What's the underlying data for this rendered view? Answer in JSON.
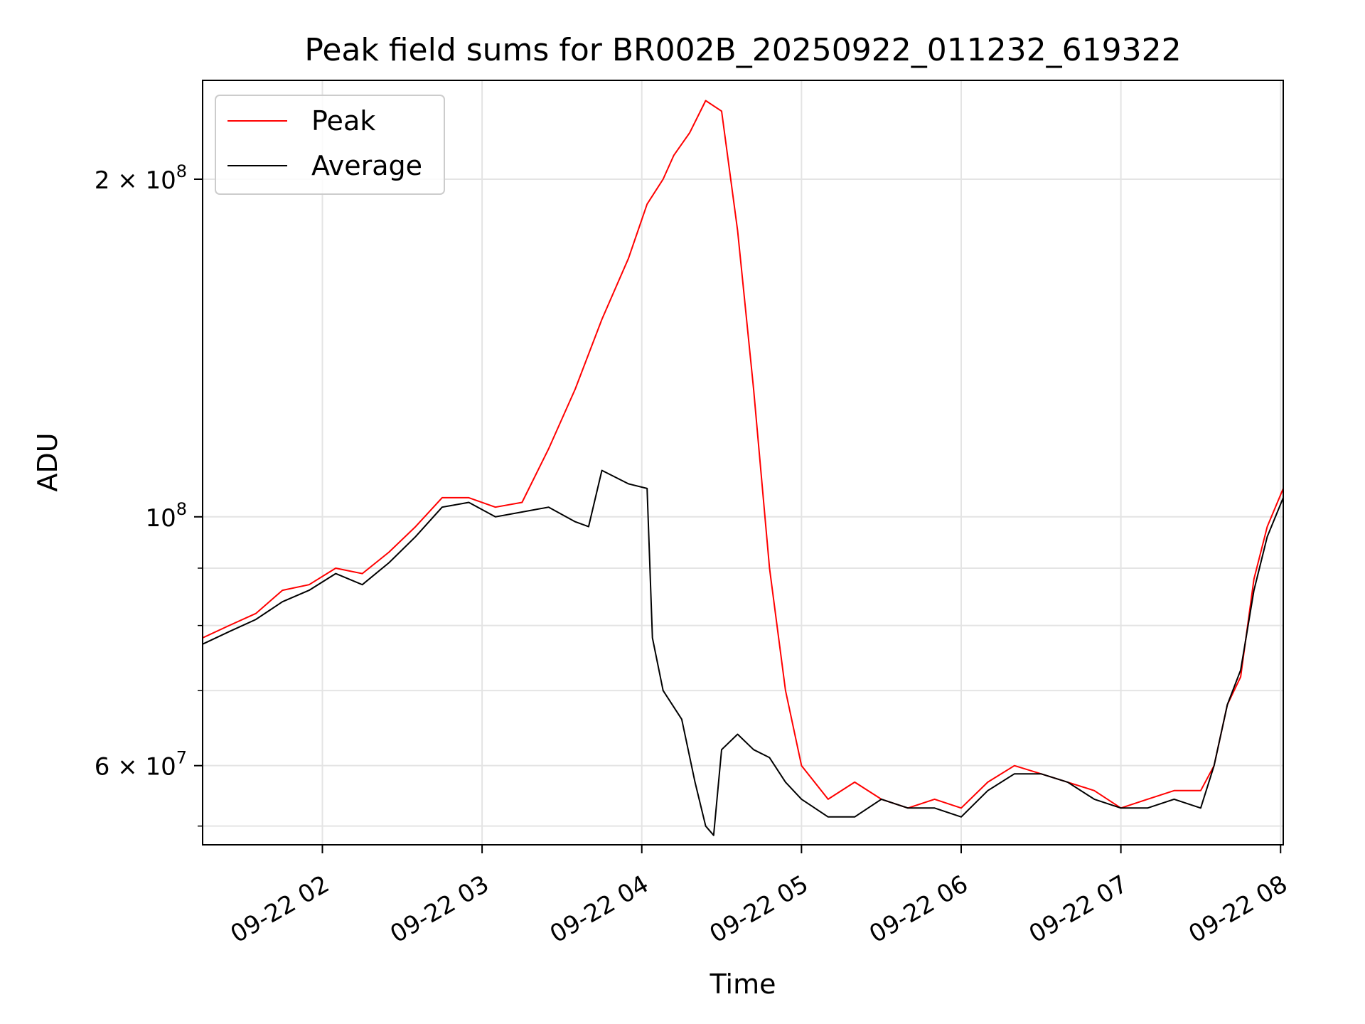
{
  "chart_data": {
    "type": "line",
    "title": "Peak field sums for BR002B_20250922_011232_619322",
    "xlabel": "Time",
    "ylabel": "ADU",
    "yscale": "log",
    "xlim": [
      "2025-09-22 01:15",
      "2025-09-22 08:01"
    ],
    "ylim": [
      51000000,
      245000000
    ],
    "grid": true,
    "legend_position": "top-left",
    "x_ticks": [
      {
        "value": "2025-09-22 02:00",
        "label": "09-22 02"
      },
      {
        "value": "2025-09-22 03:00",
        "label": "09-22 03"
      },
      {
        "value": "2025-09-22 04:00",
        "label": "09-22 04"
      },
      {
        "value": "2025-09-22 05:00",
        "label": "09-22 05"
      },
      {
        "value": "2025-09-22 06:00",
        "label": "09-22 06"
      },
      {
        "value": "2025-09-22 07:00",
        "label": "09-22 07"
      },
      {
        "value": "2025-09-22 08:00",
        "label": "09-22 08"
      }
    ],
    "y_ticks": [
      {
        "value": 60000000,
        "base": "6",
        "exp": "7"
      },
      {
        "value": 100000000,
        "base": "",
        "exp": "8"
      },
      {
        "value": 200000000,
        "base": "2",
        "exp": "8"
      }
    ],
    "y_minor_ticks": [
      53000000,
      70000000,
      80000000,
      90000000
    ],
    "series": [
      {
        "name": "Peak",
        "color": "#ff0000",
        "x": [
          "2025-09-22 01:15",
          "2025-09-22 01:25",
          "2025-09-22 01:35",
          "2025-09-22 01:45",
          "2025-09-22 01:55",
          "2025-09-22 02:05",
          "2025-09-22 02:15",
          "2025-09-22 02:25",
          "2025-09-22 02:35",
          "2025-09-22 02:45",
          "2025-09-22 02:55",
          "2025-09-22 03:05",
          "2025-09-22 03:15",
          "2025-09-22 03:25",
          "2025-09-22 03:35",
          "2025-09-22 03:45",
          "2025-09-22 03:55",
          "2025-09-22 04:02",
          "2025-09-22 04:08",
          "2025-09-22 04:12",
          "2025-09-22 04:18",
          "2025-09-22 04:24",
          "2025-09-22 04:30",
          "2025-09-22 04:36",
          "2025-09-22 04:42",
          "2025-09-22 04:48",
          "2025-09-22 04:54",
          "2025-09-22 05:00",
          "2025-09-22 05:10",
          "2025-09-22 05:20",
          "2025-09-22 05:30",
          "2025-09-22 05:40",
          "2025-09-22 05:50",
          "2025-09-22 06:00",
          "2025-09-22 06:10",
          "2025-09-22 06:20",
          "2025-09-22 06:30",
          "2025-09-22 06:40",
          "2025-09-22 06:50",
          "2025-09-22 07:00",
          "2025-09-22 07:10",
          "2025-09-22 07:20",
          "2025-09-22 07:30",
          "2025-09-22 07:35",
          "2025-09-22 07:40",
          "2025-09-22 07:45",
          "2025-09-22 07:50",
          "2025-09-22 07:55",
          "2025-09-22 08:01"
        ],
        "y": [
          78000000,
          80000000,
          82000000,
          86000000,
          87000000,
          90000000,
          89000000,
          93000000,
          98000000,
          104000000,
          104000000,
          102000000,
          103000000,
          115000000,
          130000000,
          150000000,
          170000000,
          190000000,
          200000000,
          210000000,
          220000000,
          235000000,
          230000000,
          180000000,
          130000000,
          90000000,
          70000000,
          60000000,
          56000000,
          58000000,
          56000000,
          55000000,
          56000000,
          55000000,
          58000000,
          60000000,
          59000000,
          58000000,
          57000000,
          55000000,
          56000000,
          57000000,
          57000000,
          60000000,
          68000000,
          72000000,
          88000000,
          98000000,
          106000000
        ]
      },
      {
        "name": "Average",
        "color": "#000000",
        "x": [
          "2025-09-22 01:15",
          "2025-09-22 01:25",
          "2025-09-22 01:35",
          "2025-09-22 01:45",
          "2025-09-22 01:55",
          "2025-09-22 02:05",
          "2025-09-22 02:15",
          "2025-09-22 02:25",
          "2025-09-22 02:35",
          "2025-09-22 02:45",
          "2025-09-22 02:55",
          "2025-09-22 03:05",
          "2025-09-22 03:15",
          "2025-09-22 03:25",
          "2025-09-22 03:35",
          "2025-09-22 03:40",
          "2025-09-22 03:45",
          "2025-09-22 03:55",
          "2025-09-22 04:02",
          "2025-09-22 04:04",
          "2025-09-22 04:08",
          "2025-09-22 04:15",
          "2025-09-22 04:20",
          "2025-09-22 04:24",
          "2025-09-22 04:27",
          "2025-09-22 04:30",
          "2025-09-22 04:36",
          "2025-09-22 04:42",
          "2025-09-22 04:48",
          "2025-09-22 04:54",
          "2025-09-22 05:00",
          "2025-09-22 05:10",
          "2025-09-22 05:20",
          "2025-09-22 05:30",
          "2025-09-22 05:40",
          "2025-09-22 05:50",
          "2025-09-22 06:00",
          "2025-09-22 06:10",
          "2025-09-22 06:20",
          "2025-09-22 06:30",
          "2025-09-22 06:40",
          "2025-09-22 06:50",
          "2025-09-22 07:00",
          "2025-09-22 07:10",
          "2025-09-22 07:20",
          "2025-09-22 07:30",
          "2025-09-22 07:35",
          "2025-09-22 07:40",
          "2025-09-22 07:45",
          "2025-09-22 07:50",
          "2025-09-22 07:55",
          "2025-09-22 08:01"
        ],
        "y": [
          77000000,
          79000000,
          81000000,
          84000000,
          86000000,
          89000000,
          87000000,
          91000000,
          96000000,
          102000000,
          103000000,
          100000000,
          101000000,
          102000000,
          99000000,
          98000000,
          110000000,
          107000000,
          106000000,
          78000000,
          70000000,
          66000000,
          58000000,
          53000000,
          52000000,
          62000000,
          64000000,
          62000000,
          61000000,
          58000000,
          56000000,
          54000000,
          54000000,
          56000000,
          55000000,
          55000000,
          54000000,
          57000000,
          59000000,
          59000000,
          58000000,
          56000000,
          55000000,
          55000000,
          56000000,
          55000000,
          60000000,
          68000000,
          73000000,
          86000000,
          96000000,
          104000000
        ]
      }
    ]
  }
}
